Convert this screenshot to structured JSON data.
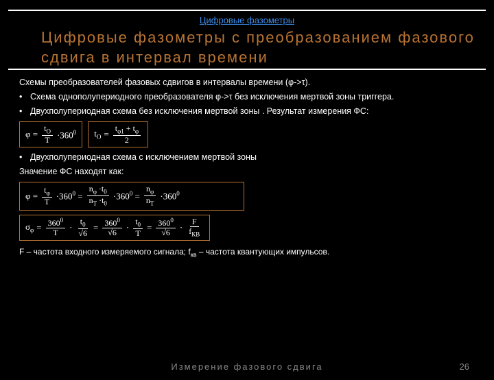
{
  "header": {
    "link_text": "Цифровые фазометры"
  },
  "title": "Цифровые  фазометры  с  преобразованием  фазового  сдвига  в  интервал  времени",
  "body": {
    "intro": "Схемы преобразователей фазовых сдвигов в интервалы времени (φ->τ).",
    "bullet1": "Схема однополупериодного преобразователя φ->τ без исключения мертвой зоны триггера.",
    "bullet2": "Двухполупериодная схема без исключения мертвой зоны . Результат измерения ФС:",
    "bullet3": "Двухполупериодная схема с исключением мертвой зоны",
    "findAs": "Значение ФС находят как:",
    "note": "F – частота входного измеряемого сигнала; f",
    "note_sub": "кв",
    "note_tail": " – частота квантующих импульсов."
  },
  "formulas": {
    "f1": {
      "phi": "φ =",
      "tO": "t",
      "tOsub": "O",
      "T": "T",
      "mult": "·360",
      "deg": "0"
    },
    "f2": {
      "tO": "t",
      "tOsub": "O",
      "eq": " =",
      "tphi1": "t",
      "s1": "φ1",
      "plus": " + t",
      "s2": "φ",
      "two": "2"
    },
    "f3": {
      "phi": "φ =",
      "t": "t",
      "tphs": "φ",
      "T": "T",
      "n": "n",
      "nphs": "φ",
      "nT": "n",
      "nTsub": "T",
      "t0": "t",
      "t0sub": "0",
      "mult": "·360",
      "deg": "0",
      "end": "·360",
      "enddeg": "0"
    },
    "f4": {
      "sigma": "σ",
      "sphs": "φ",
      "eq": " =",
      "d360": "360",
      "deg": "0",
      "T": "T",
      "root6": "√6",
      "t0": "t",
      "t0sub": "0",
      "F": "F",
      "fkv": "f",
      "fkvsub": "КВ"
    }
  },
  "footer": {
    "text": "Измерение  фазового  сдвига",
    "page": "26"
  },
  "style": {
    "accent": "#b87333",
    "link": "#3e8eed",
    "bg": "#000000",
    "fg": "#ffffff",
    "muted": "#888888"
  }
}
